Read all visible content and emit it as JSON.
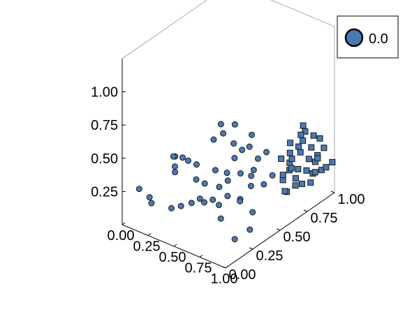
{
  "chart_data": {
    "type": "scatter",
    "projection": "3d",
    "title": "",
    "xlabel": "",
    "ylabel": "",
    "zlabel": "",
    "xlim": [
      0,
      1
    ],
    "ylim": [
      0,
      1
    ],
    "zlim": [
      0,
      1.25
    ],
    "x_ticks": [
      "0.00",
      "0.25",
      "0.50",
      "0.75",
      "1.00"
    ],
    "y_ticks": [
      "0.00",
      "0.25",
      "0.50",
      "0.75",
      "1.00"
    ],
    "z_ticks": [
      "0.25",
      "0.50",
      "0.75",
      "1.00"
    ],
    "grid": false,
    "legend": {
      "position": "top-right",
      "entries": [
        "0.0"
      ]
    },
    "colors": {
      "marker": "#4a79b3",
      "edge": "#1a1a1a",
      "axes": "#000000",
      "box": "#999999"
    },
    "series": [
      {
        "name": "0.0",
        "marker": "circle",
        "points": [
          [
            0.08,
            0.08,
            0.25
          ],
          [
            0.18,
            0.08,
            0.22
          ],
          [
            0.22,
            0.06,
            0.2
          ],
          [
            0.32,
            0.18,
            0.44
          ],
          [
            0.28,
            0.22,
            0.48
          ],
          [
            0.3,
            0.2,
            0.38
          ],
          [
            0.2,
            0.28,
            0.42
          ],
          [
            0.3,
            0.27,
            0.45
          ],
          [
            0.45,
            0.5,
            0.55
          ],
          [
            0.46,
            0.47,
            0.64
          ],
          [
            0.4,
            0.46,
            0.51
          ],
          [
            0.52,
            0.53,
            0.48
          ],
          [
            0.5,
            0.56,
            0.6
          ],
          [
            0.56,
            0.5,
            0.4
          ],
          [
            0.58,
            0.55,
            0.44
          ],
          [
            0.62,
            0.58,
            0.46
          ],
          [
            0.6,
            0.62,
            0.52
          ],
          [
            0.66,
            0.62,
            0.36
          ],
          [
            0.7,
            0.66,
            0.4
          ],
          [
            0.64,
            0.6,
            0.28
          ],
          [
            0.35,
            0.12,
            0.17
          ],
          [
            0.4,
            0.16,
            0.18
          ],
          [
            0.46,
            0.2,
            0.2
          ],
          [
            0.52,
            0.26,
            0.19
          ],
          [
            0.56,
            0.3,
            0.2
          ],
          [
            0.62,
            0.3,
            0.18
          ],
          [
            0.68,
            0.26,
            0.12
          ],
          [
            0.52,
            0.22,
            0.24
          ],
          [
            0.58,
            0.34,
            0.28
          ],
          [
            0.64,
            0.36,
            0.22
          ],
          [
            0.72,
            0.4,
            0.2
          ],
          [
            0.92,
            0.16,
            0.1
          ],
          [
            0.94,
            0.28,
            0.11
          ],
          [
            0.8,
            0.62,
            0.28
          ],
          [
            0.78,
            0.56,
            0.24
          ],
          [
            0.7,
            0.52,
            0.3
          ],
          [
            0.74,
            0.48,
            0.26
          ],
          [
            0.6,
            0.4,
            0.3
          ],
          [
            0.4,
            0.3,
            0.3
          ],
          [
            0.34,
            0.36,
            0.36
          ],
          [
            0.48,
            0.4,
            0.34
          ],
          [
            0.44,
            0.34,
            0.26
          ],
          [
            0.66,
            0.46,
            0.34
          ],
          [
            0.76,
            0.36,
            0.22
          ],
          [
            0.84,
            0.4,
            0.14
          ],
          [
            0.28,
            0.34,
            0.38
          ],
          [
            0.55,
            0.44,
            0.32
          ]
        ]
      },
      {
        "name": "",
        "marker": "square",
        "points": [
          [
            0.96,
            0.6,
            0.22
          ],
          [
            0.98,
            0.66,
            0.24
          ],
          [
            0.92,
            0.62,
            0.2
          ],
          [
            0.88,
            0.7,
            0.3
          ],
          [
            0.9,
            0.76,
            0.28
          ],
          [
            0.86,
            0.82,
            0.36
          ],
          [
            0.94,
            0.8,
            0.26
          ],
          [
            0.82,
            0.88,
            0.4
          ],
          [
            0.8,
            0.92,
            0.44
          ],
          [
            0.84,
            0.96,
            0.4
          ],
          [
            0.76,
            0.94,
            0.46
          ],
          [
            0.98,
            0.9,
            0.22
          ],
          [
            0.96,
            0.96,
            0.2
          ],
          [
            1.0,
            0.98,
            0.24
          ],
          [
            0.9,
            0.86,
            0.3
          ],
          [
            0.78,
            0.8,
            0.34
          ],
          [
            0.74,
            0.84,
            0.38
          ],
          [
            0.92,
            0.72,
            0.24
          ],
          [
            0.88,
            0.64,
            0.26
          ],
          [
            0.96,
            0.74,
            0.2
          ],
          [
            0.84,
            0.74,
            0.32
          ],
          [
            0.8,
            0.7,
            0.36
          ],
          [
            0.92,
            0.92,
            0.3
          ],
          [
            0.86,
            0.92,
            0.34
          ],
          [
            0.98,
            0.82,
            0.24
          ],
          [
            0.94,
            0.88,
            0.28
          ],
          [
            0.9,
            0.94,
            0.26
          ],
          [
            0.82,
            0.78,
            0.32
          ],
          [
            0.88,
            0.98,
            0.38
          ],
          [
            0.96,
            0.86,
            0.22
          ],
          [
            1.0,
            0.78,
            0.2
          ],
          [
            0.78,
            0.9,
            0.42
          ],
          [
            0.86,
            0.66,
            0.28
          ],
          [
            0.92,
            0.68,
            0.34
          ],
          [
            0.8,
            0.86,
            0.36
          ],
          [
            0.94,
            0.96,
            0.34
          ]
        ]
      }
    ]
  }
}
